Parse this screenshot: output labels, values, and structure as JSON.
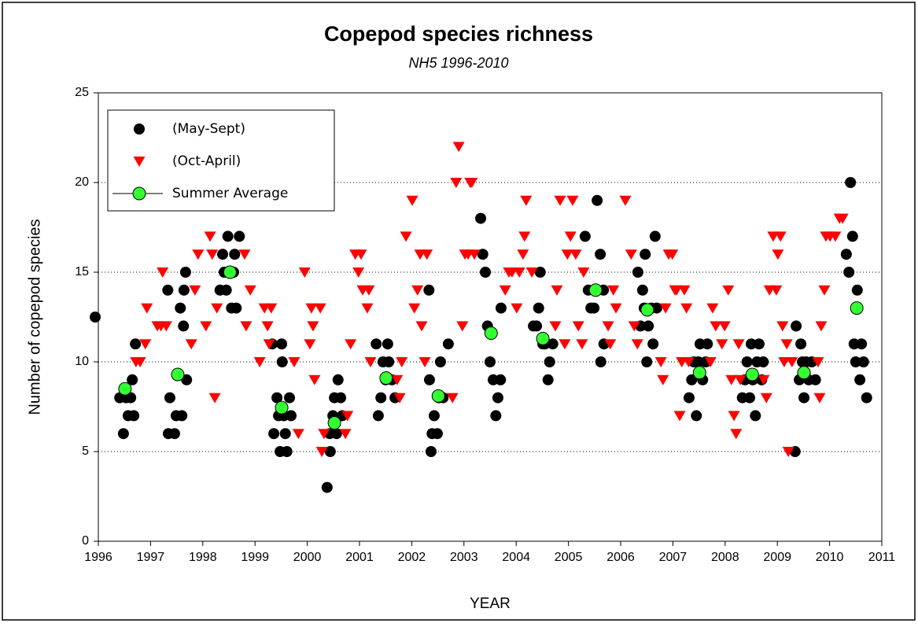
{
  "chart_data": {
    "type": "scatter",
    "title": "Copepod species richness",
    "subtitle": "NH5 1996-2010",
    "xlabel": "YEAR",
    "ylabel": "Number of copepod species",
    "xlim": [
      1996,
      2011
    ],
    "xticks": [
      1996,
      1997,
      1998,
      1999,
      2000,
      2001,
      2002,
      2003,
      2004,
      2005,
      2006,
      2007,
      2008,
      2009,
      2010,
      2011
    ],
    "ylim": [
      0,
      25
    ],
    "yticks": [
      0,
      5,
      10,
      15,
      20,
      25
    ],
    "grid": true,
    "legend": "upper left",
    "series": [
      {
        "name": "(May-Sept)",
        "color": "#000000",
        "marker": "circle",
        "x": [
          1995.94,
          1996.41,
          1996.48,
          1996.53,
          1996.57,
          1996.62,
          1996.65,
          1996.68,
          1996.71,
          1997.33,
          1997.34,
          1997.37,
          1997.46,
          1997.49,
          1997.57,
          1997.6,
          1997.63,
          1997.64,
          1997.67,
          1997.69,
          1998.33,
          1998.38,
          1998.41,
          1998.45,
          1998.48,
          1998.55,
          1998.59,
          1998.61,
          1998.64,
          1998.7,
          1999.33,
          1999.36,
          1999.42,
          1999.45,
          1999.48,
          1999.51,
          1999.52,
          1999.55,
          1999.58,
          1999.61,
          1999.66,
          1999.69,
          2000.38,
          2000.43,
          2000.44,
          2000.49,
          2000.52,
          2000.56,
          2000.59,
          2000.64,
          2000.67,
          2001.32,
          2001.36,
          2001.41,
          2001.45,
          2001.5,
          2001.54,
          2001.56,
          2001.62,
          2001.68,
          2002.33,
          2002.34,
          2002.37,
          2002.39,
          2002.43,
          2002.49,
          2002.52,
          2002.55,
          2002.6,
          2002.7,
          2003.32,
          2003.36,
          2003.41,
          2003.45,
          2003.5,
          2003.56,
          2003.61,
          2003.65,
          2003.7,
          2003.71,
          2004.33,
          2004.39,
          2004.43,
          2004.46,
          2004.51,
          2004.55,
          2004.61,
          2004.64,
          2004.7,
          2005.32,
          2005.38,
          2005.43,
          2005.49,
          2005.52,
          2005.55,
          2005.61,
          2005.62,
          2005.67,
          2005.68,
          2006.33,
          2006.38,
          2006.42,
          2006.45,
          2006.47,
          2006.5,
          2006.53,
          2006.59,
          2006.62,
          2006.66,
          2006.69,
          2007.31,
          2007.36,
          2007.4,
          2007.45,
          2007.49,
          2007.52,
          2007.57,
          2007.63,
          2007.66,
          2008.33,
          2008.38,
          2008.42,
          2008.47,
          2008.5,
          2008.53,
          2008.58,
          2008.61,
          2008.65,
          2008.7,
          2008.73,
          2009.34,
          2009.36,
          2009.42,
          2009.45,
          2009.48,
          2009.51,
          2009.55,
          2009.6,
          2009.66,
          2009.73,
          2010.32,
          2010.37,
          2010.4,
          2010.44,
          2010.47,
          2010.5,
          2010.53,
          2010.58,
          2010.61,
          2010.65,
          2010.71
        ],
        "values": [
          12.5,
          8,
          6,
          8,
          7,
          8,
          9,
          7,
          11,
          14,
          6,
          8,
          6,
          7,
          13,
          7,
          12,
          14,
          15,
          9,
          14,
          16,
          15,
          14,
          17,
          13,
          15,
          16,
          13,
          17,
          11,
          6,
          8,
          7,
          5,
          11,
          10,
          7,
          6,
          5,
          8,
          7,
          3,
          6,
          5,
          7,
          8,
          6,
          9,
          8,
          7,
          11,
          7,
          8,
          10,
          9,
          11,
          10,
          9,
          8,
          14,
          9,
          5,
          6,
          7,
          6,
          8,
          10,
          8,
          11,
          18,
          16,
          15,
          12,
          10,
          9,
          7,
          8,
          9,
          13,
          12,
          12,
          13,
          15,
          11,
          11,
          9,
          10,
          11,
          17,
          14,
          13,
          13,
          14,
          19,
          16,
          10,
          14,
          11,
          15,
          12,
          14,
          13,
          16,
          10,
          12,
          13,
          11,
          17,
          13,
          8,
          9,
          10,
          7,
          10,
          11,
          9,
          10,
          11,
          8,
          9,
          10,
          8,
          11,
          9,
          7,
          10,
          11,
          9,
          10,
          5,
          12,
          9,
          11,
          10,
          8,
          10,
          9,
          10,
          9,
          16,
          15,
          20,
          17,
          11,
          10,
          14,
          9,
          11,
          10,
          8
        ]
      },
      {
        "name": "(Oct-April)",
        "color": "#ff0000",
        "marker": "triangle-down",
        "x": [
          1996.72,
          1996.8,
          1996.9,
          1996.93,
          1997.13,
          1997.2,
          1997.23,
          1997.3,
          1997.78,
          1997.85,
          1997.91,
          1998.06,
          1998.14,
          1998.18,
          1998.23,
          1998.27,
          1998.8,
          1998.83,
          1998.91,
          1999.09,
          1999.18,
          1999.24,
          1999.27,
          1999.31,
          1999.75,
          1999.83,
          1999.95,
          2000.05,
          2000.08,
          2000.11,
          2000.14,
          2000.25,
          2000.28,
          2000.32,
          2000.73,
          2000.77,
          2000.83,
          2000.92,
          2000.98,
          2001.03,
          2001.06,
          2001.15,
          2001.18,
          2001.21,
          2001.72,
          2001.77,
          2001.81,
          2001.89,
          2002.01,
          2002.05,
          2002.11,
          2002.16,
          2002.19,
          2002.25,
          2002.29,
          2002.78,
          2002.85,
          2002.9,
          2002.97,
          2003.02,
          2003.08,
          2003.12,
          2003.15,
          2003.2,
          2003.79,
          2003.86,
          2003.92,
          2004.01,
          2004.06,
          2004.13,
          2004.16,
          2004.19,
          2004.3,
          2004.75,
          2004.78,
          2004.84,
          2004.93,
          2004.98,
          2005.04,
          2005.08,
          2005.14,
          2005.19,
          2005.26,
          2005.29,
          2005.76,
          2005.8,
          2005.86,
          2005.91,
          2006.09,
          2006.2,
          2006.26,
          2006.32,
          2006.77,
          2006.81,
          2006.86,
          2006.92,
          2006.99,
          2007.04,
          2007.07,
          2007.13,
          2007.17,
          2007.22,
          2007.26,
          2007.3,
          2007.72,
          2007.76,
          2007.82,
          2007.94,
          2007.99,
          2008.06,
          2008.12,
          2008.17,
          2008.21,
          2008.26,
          2008.29,
          2008.74,
          2008.79,
          2008.85,
          2008.92,
          2008.98,
          2009.01,
          2009.06,
          2009.1,
          2009.13,
          2009.18,
          2009.21,
          2009.28,
          2009.78,
          2009.81,
          2009.84,
          2009.9,
          2009.93,
          2010.01,
          2010.11,
          2010.19,
          2010.25
        ],
        "values": [
          10,
          10,
          11,
          13,
          12,
          12,
          15,
          12,
          11,
          14,
          16,
          12,
          17,
          16,
          8,
          13,
          16,
          12,
          14,
          10,
          13,
          12,
          11,
          13,
          10,
          6,
          15,
          11,
          13,
          12,
          9,
          13,
          5,
          6,
          6,
          7,
          11,
          16,
          15,
          16,
          14,
          13,
          14,
          10,
          9,
          8,
          10,
          17,
          19,
          13,
          14,
          16,
          12,
          10,
          16,
          8,
          20,
          22,
          12,
          16,
          16,
          20,
          20,
          16,
          14,
          15,
          15,
          13,
          15,
          16,
          17,
          19,
          15,
          12,
          14,
          19,
          11,
          16,
          17,
          19,
          16,
          12,
          11,
          15,
          12,
          11,
          14,
          13,
          19,
          16,
          12,
          11,
          10,
          9,
          13,
          16,
          16,
          14,
          14,
          7,
          10,
          14,
          13,
          10,
          10,
          13,
          12,
          11,
          12,
          14,
          9,
          7,
          6,
          11,
          9,
          9,
          8,
          14,
          17,
          14,
          16,
          17,
          12,
          10,
          11,
          5,
          10,
          10,
          8,
          12,
          14,
          17,
          17,
          17,
          18,
          18
        ]
      },
      {
        "name": "Summer Average",
        "color": "#33ff33",
        "marker": "circle-outlined",
        "legend_line": true,
        "x": [
          1996.51,
          1997.52,
          1998.52,
          1999.51,
          2000.52,
          2001.51,
          2002.51,
          2003.52,
          2004.51,
          2005.52,
          2006.51,
          2007.51,
          2008.52,
          2009.51,
          2010.52
        ],
        "values": [
          8.5,
          9.3,
          15,
          7.45,
          6.6,
          9.1,
          8.1,
          11.6,
          11.3,
          14,
          12.9,
          9.4,
          9.3,
          9.4,
          13
        ]
      }
    ]
  }
}
